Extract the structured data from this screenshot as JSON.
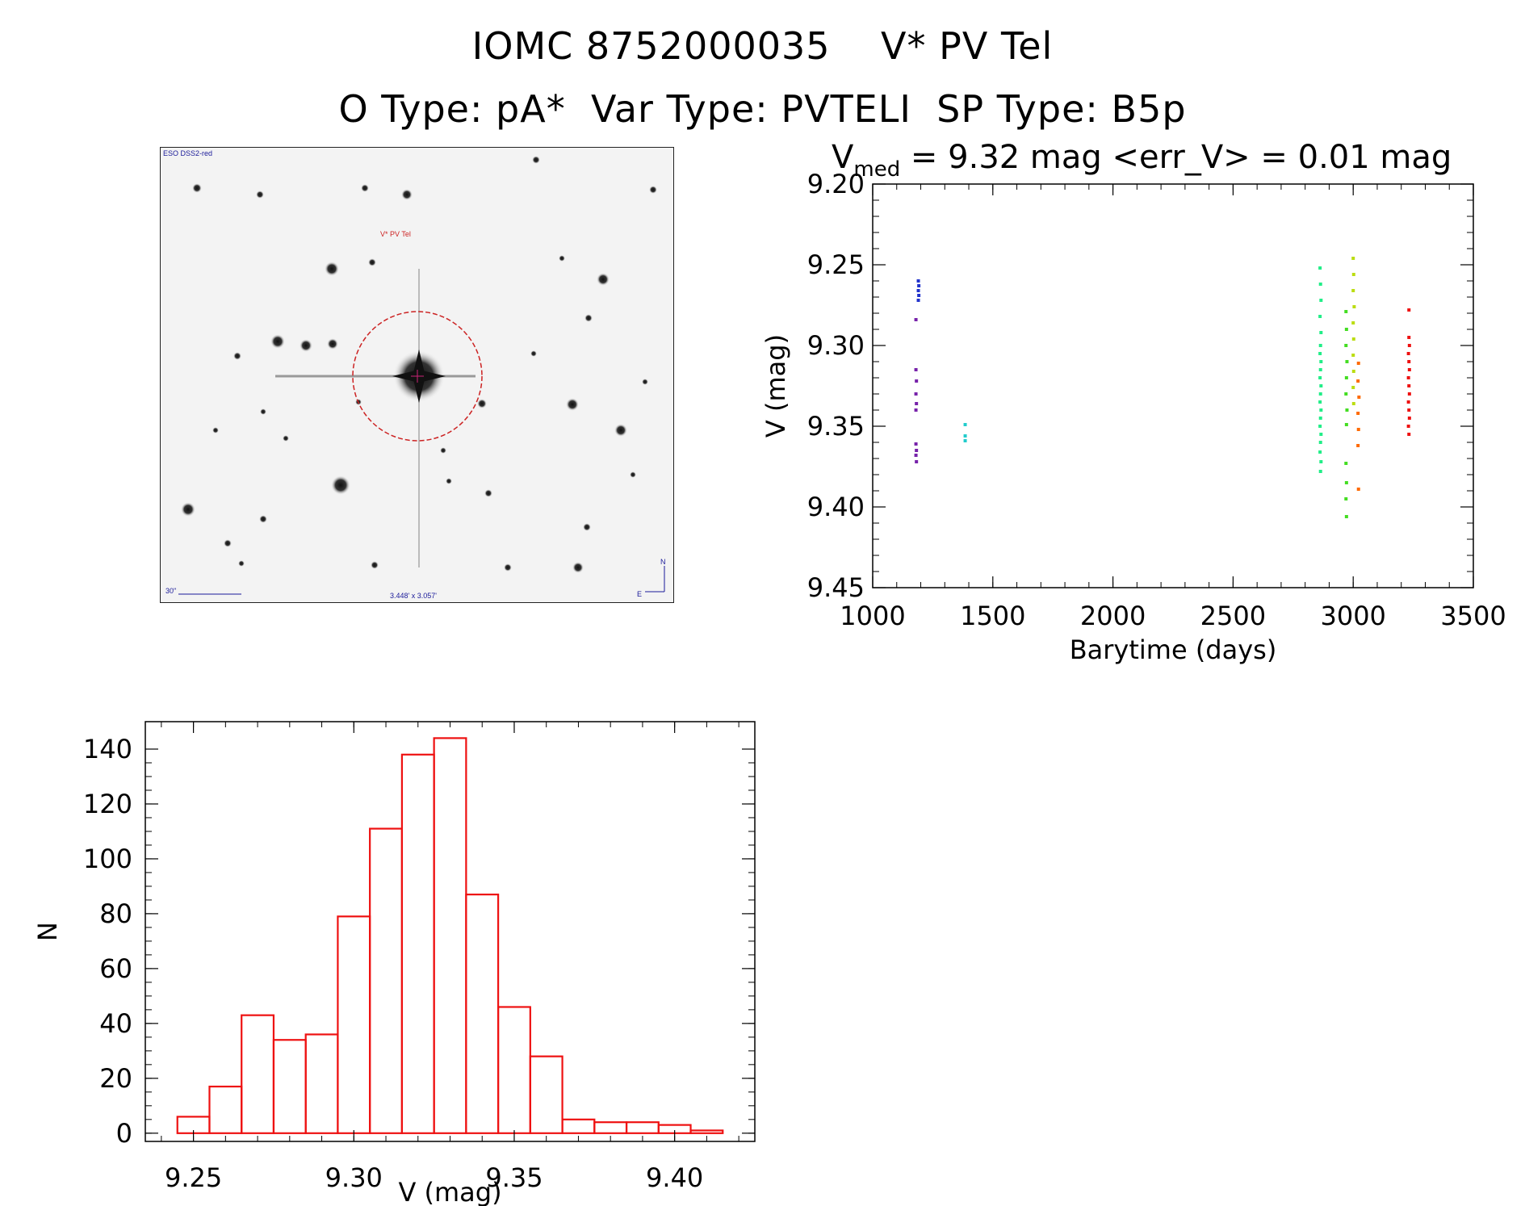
{
  "header": {
    "line1": "IOMC 8752000035    V* PV Tel",
    "line2": "O Type: pA*  Var Type: PVTELI  SP Type: B5p"
  },
  "image_panel": {
    "survey_label": "ESO DSS2-red",
    "target_label": "V* PV Tel",
    "scale_label": "30\"",
    "fov_label": "3.448' x 3.057'",
    "north_label": "N",
    "east_label": "E",
    "colors": {
      "circle": "#cc2222",
      "labels_blue": "#1a1a99",
      "label_red": "#cc2222"
    }
  },
  "chart_data": [
    {
      "type": "scatter",
      "title_prefix": "V",
      "title_sub": "med",
      "title_rest": " = 9.32 mag <err_V> = 0.01 mag",
      "xlabel": "Barytime (days)",
      "ylabel": "V (mag)",
      "xlim": [
        1000,
        3500
      ],
      "ylim": [
        9.2,
        9.45
      ],
      "y_inverted": true,
      "x_ticks": [
        "1000",
        "1500",
        "2000",
        "2500",
        "3000",
        "3500"
      ],
      "y_ticks": [
        "9.20",
        "9.25",
        "9.30",
        "9.35",
        "9.40",
        "9.45"
      ],
      "series": [
        {
          "color": "#2233cc",
          "points": [
            [
              1190,
              9.26
            ],
            [
              1192,
              9.263
            ],
            [
              1190,
              9.266
            ],
            [
              1192,
              9.269
            ],
            [
              1190,
              9.272
            ]
          ]
        },
        {
          "color": "#7722aa",
          "points": [
            [
              1180,
              9.284
            ],
            [
              1180,
              9.315
            ],
            [
              1182,
              9.322
            ],
            [
              1180,
              9.33
            ],
            [
              1182,
              9.336
            ],
            [
              1180,
              9.34
            ],
            [
              1180,
              9.361
            ],
            [
              1182,
              9.365
            ],
            [
              1180,
              9.368
            ],
            [
              1182,
              9.372
            ]
          ]
        },
        {
          "color": "#22cccc",
          "points": [
            [
              1385,
              9.349
            ],
            [
              1385,
              9.356
            ],
            [
              1385,
              9.359
            ]
          ]
        },
        {
          "color": "#22ee88",
          "points": [
            [
              2862,
              9.252
            ],
            [
              2864,
              9.262
            ],
            [
              2866,
              9.272
            ],
            [
              2862,
              9.282
            ],
            [
              2866,
              9.292
            ],
            [
              2864,
              9.3
            ],
            [
              2862,
              9.305
            ],
            [
              2866,
              9.31
            ],
            [
              2864,
              9.315
            ],
            [
              2862,
              9.32
            ],
            [
              2866,
              9.325
            ],
            [
              2864,
              9.33
            ],
            [
              2862,
              9.335
            ],
            [
              2866,
              9.34
            ],
            [
              2864,
              9.345
            ],
            [
              2862,
              9.35
            ],
            [
              2866,
              9.355
            ],
            [
              2864,
              9.36
            ],
            [
              2862,
              9.366
            ],
            [
              2866,
              9.372
            ],
            [
              2864,
              9.378
            ]
          ]
        },
        {
          "color": "#44dd22",
          "points": [
            [
              2970,
              9.279
            ],
            [
              2972,
              9.29
            ],
            [
              2970,
              9.3
            ],
            [
              2974,
              9.31
            ],
            [
              2972,
              9.32
            ],
            [
              2970,
              9.33
            ],
            [
              2974,
              9.34
            ],
            [
              2972,
              9.349
            ],
            [
              2970,
              9.373
            ],
            [
              2972,
              9.385
            ],
            [
              2970,
              9.395
            ],
            [
              2972,
              9.406
            ]
          ]
        },
        {
          "color": "#bbdd11",
          "points": [
            [
              3000,
              9.246
            ],
            [
              3002,
              9.256
            ],
            [
              3000,
              9.266
            ],
            [
              3004,
              9.276
            ],
            [
              3000,
              9.286
            ],
            [
              3002,
              9.296
            ],
            [
              3000,
              9.306
            ],
            [
              3002,
              9.316
            ],
            [
              3000,
              9.326
            ],
            [
              3002,
              9.336
            ]
          ]
        },
        {
          "color": "#ff6a00",
          "points": [
            [
              3022,
              9.311
            ],
            [
              3020,
              9.322
            ],
            [
              3024,
              9.332
            ],
            [
              3020,
              9.342
            ],
            [
              3022,
              9.352
            ],
            [
              3020,
              9.362
            ],
            [
              3022,
              9.389
            ]
          ]
        },
        {
          "color": "#ee1111",
          "points": [
            [
              3232,
              9.278
            ],
            [
              3232,
              9.295
            ],
            [
              3234,
              9.3
            ],
            [
              3230,
              9.305
            ],
            [
              3232,
              9.31
            ],
            [
              3234,
              9.315
            ],
            [
              3230,
              9.32
            ],
            [
              3232,
              9.325
            ],
            [
              3234,
              9.33
            ],
            [
              3230,
              9.335
            ],
            [
              3232,
              9.34
            ],
            [
              3234,
              9.345
            ],
            [
              3230,
              9.35
            ],
            [
              3232,
              9.355
            ]
          ]
        }
      ]
    },
    {
      "type": "bar",
      "xlabel": "V (mag)",
      "ylabel": "N",
      "xlim": [
        9.235,
        9.425
      ],
      "ylim": [
        -3,
        150
      ],
      "x_ticks": [
        "9.25",
        "9.30",
        "9.35",
        "9.40"
      ],
      "y_ticks": [
        "0",
        "20",
        "40",
        "60",
        "80",
        "100",
        "120",
        "140"
      ],
      "bar_color": "#ee1111",
      "bin_edges": [
        9.245,
        9.255,
        9.265,
        9.275,
        9.285,
        9.295,
        9.305,
        9.315,
        9.325,
        9.335,
        9.345,
        9.355,
        9.365,
        9.375,
        9.385,
        9.395,
        9.405,
        9.415
      ],
      "values": [
        6,
        17,
        43,
        34,
        36,
        79,
        111,
        138,
        144,
        87,
        46,
        28,
        5,
        4,
        4,
        3,
        1
      ]
    }
  ]
}
